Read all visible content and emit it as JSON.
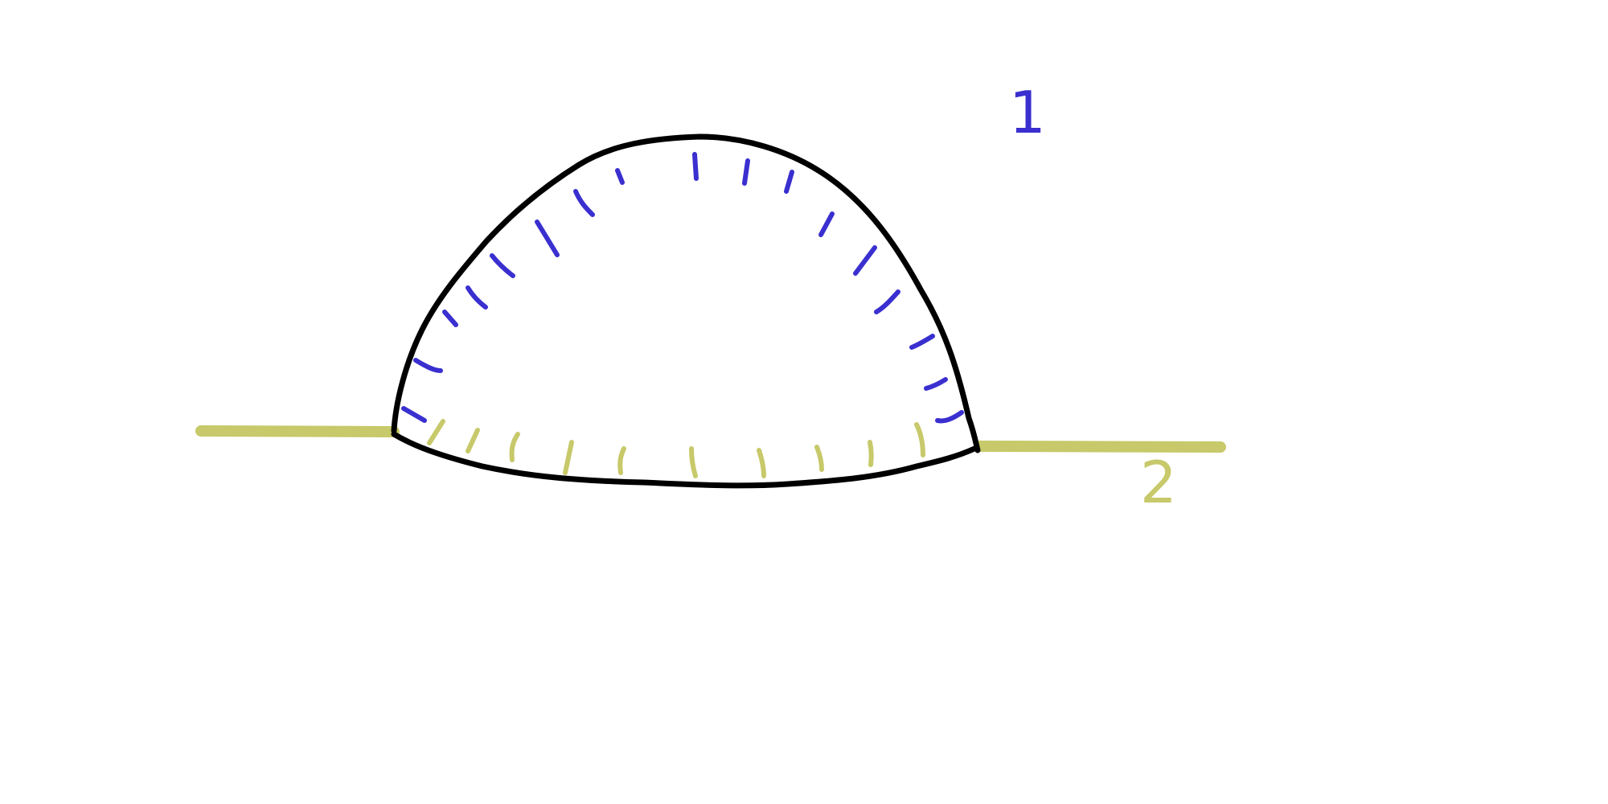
{
  "diagram": {
    "colors": {
      "boundary": "#000000",
      "region_1": "#3a2fcf",
      "region_2": "#c7c96a",
      "background": "#ffffff"
    },
    "labels": {
      "region_1": "1",
      "region_2": "2"
    },
    "elements": [
      {
        "name": "upper-arc-boundary",
        "color": "boundary",
        "kind": "curve"
      },
      {
        "name": "lower-arc-boundary",
        "color": "boundary",
        "kind": "curve"
      },
      {
        "name": "left-line",
        "color": "region_2",
        "kind": "line"
      },
      {
        "name": "right-line",
        "color": "region_2",
        "kind": "line"
      },
      {
        "name": "upper-hatching",
        "color": "region_1",
        "kind": "hatching"
      },
      {
        "name": "lower-hatching",
        "color": "region_2",
        "kind": "hatching"
      }
    ]
  }
}
